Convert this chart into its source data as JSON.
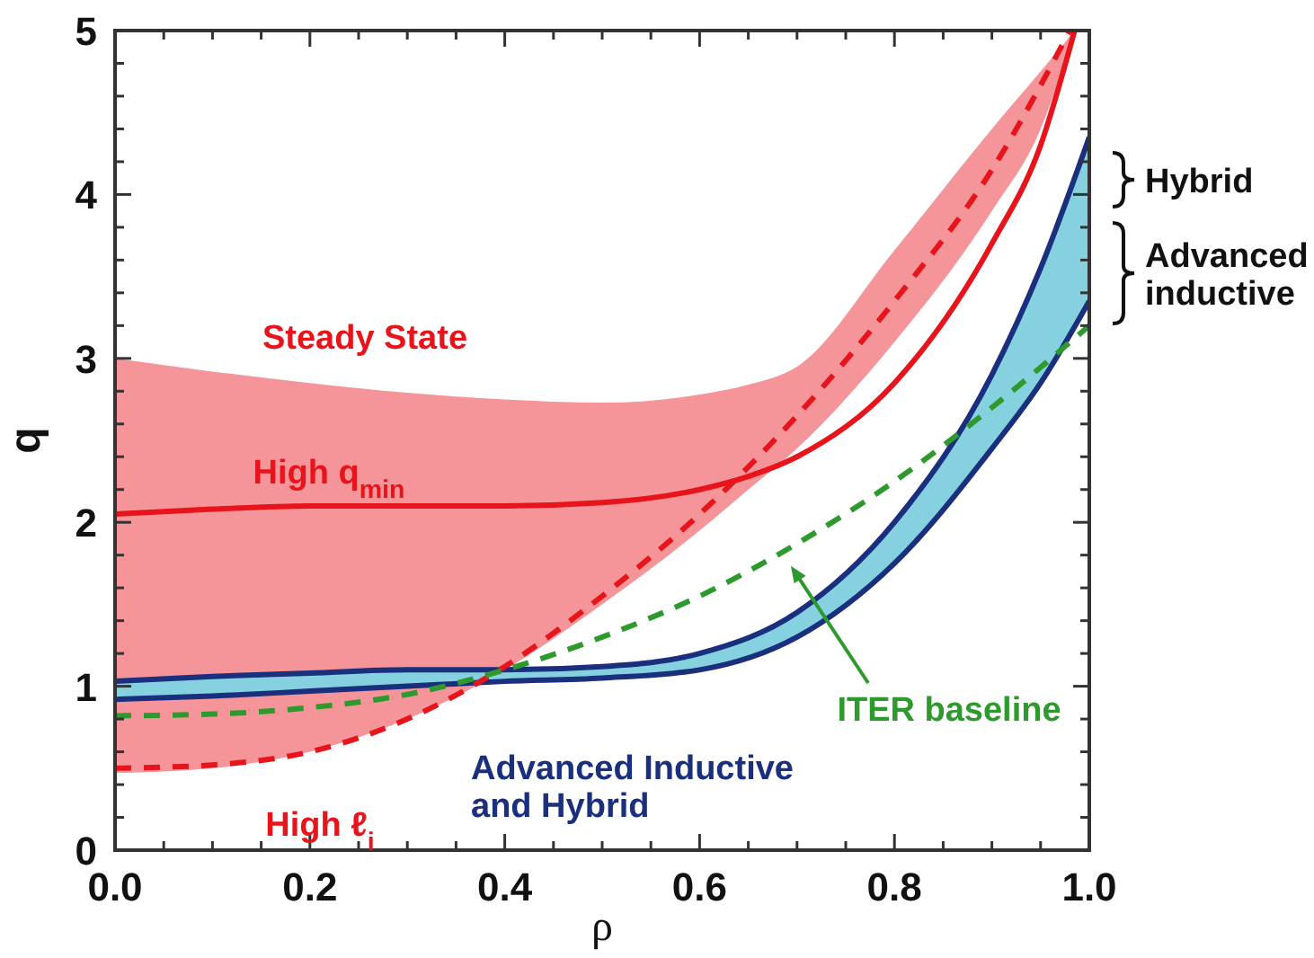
{
  "chart_data": {
    "type": "line",
    "xlabel": "ρ",
    "ylabel": "q",
    "xlim": [
      0,
      1
    ],
    "ylim": [
      0,
      5
    ],
    "xticks": [
      {
        "value": 0,
        "label": "0.0"
      },
      {
        "value": 0.05,
        "label": null
      },
      {
        "value": 0.1,
        "label": null
      },
      {
        "value": 0.15,
        "label": null
      },
      {
        "value": 0.2,
        "label": "0.2"
      },
      {
        "value": 0.25,
        "label": null
      },
      {
        "value": 0.3,
        "label": null
      },
      {
        "value": 0.35,
        "label": null
      },
      {
        "value": 0.4,
        "label": "0.4"
      },
      {
        "value": 0.45,
        "label": null
      },
      {
        "value": 0.5,
        "label": null
      },
      {
        "value": 0.55,
        "label": null
      },
      {
        "value": 0.6,
        "label": "0.6"
      },
      {
        "value": 0.65,
        "label": null
      },
      {
        "value": 0.7,
        "label": null
      },
      {
        "value": 0.75,
        "label": null
      },
      {
        "value": 0.8,
        "label": "0.8"
      },
      {
        "value": 0.85,
        "label": null
      },
      {
        "value": 0.9,
        "label": null
      },
      {
        "value": 0.95,
        "label": null
      },
      {
        "value": 1,
        "label": "1.0"
      }
    ],
    "yticks": [
      0,
      {
        "value": 0.2,
        "label": null
      },
      {
        "value": 0.4,
        "label": null
      },
      {
        "value": 0.6,
        "label": null
      },
      {
        "value": 0.8,
        "label": null
      },
      1,
      {
        "value": 1.2,
        "label": null
      },
      {
        "value": 1.4,
        "label": null
      },
      {
        "value": 1.6,
        "label": null
      },
      {
        "value": 1.8,
        "label": null
      },
      2,
      {
        "value": 2.2,
        "label": null
      },
      {
        "value": 2.4,
        "label": null
      },
      {
        "value": 2.6,
        "label": null
      },
      {
        "value": 2.8,
        "label": null
      },
      3,
      {
        "value": 3.2,
        "label": null
      },
      {
        "value": 3.4,
        "label": null
      },
      {
        "value": 3.6,
        "label": null
      },
      {
        "value": 3.8,
        "label": null
      },
      4,
      {
        "value": 4.2,
        "label": null
      },
      {
        "value": 4.4,
        "label": null
      },
      {
        "value": 4.6,
        "label": null
      },
      {
        "value": 4.8,
        "label": null
      },
      5
    ],
    "grid": false,
    "marker": "none",
    "series": [
      {
        "color": "#e8141c",
        "line_style": "solid",
        "x": [
          0,
          0.1,
          0.2,
          0.3,
          0.4,
          0.5,
          0.6,
          0.65,
          0.7,
          0.8,
          0.9,
          0.95,
          0.985
        ],
        "values": [
          2.05,
          2.08,
          2.1,
          2.1,
          2.1,
          2.12,
          2.2,
          2.28,
          2.4,
          2.85,
          3.7,
          4.3,
          5.0
        ],
        "upper": [
          3.0,
          2.92,
          2.85,
          2.79,
          2.75,
          2.73,
          2.78,
          2.84,
          2.95,
          3.66,
          4.4,
          4.75,
          5.0
        ],
        "lower": [
          0.47,
          0.5,
          0.6,
          0.8,
          1.1,
          1.5,
          1.95,
          2.2,
          2.45,
          3.1,
          3.9,
          4.4,
          5.0
        ]
      },
      {
        "color": "#1a2f7d",
        "line_style": "solid",
        "x": [
          0,
          0.1,
          0.2,
          0.3,
          0.4,
          0.5,
          0.6,
          0.7,
          0.8,
          0.9,
          0.95,
          1.0
        ],
        "values": [
          1.03,
          1.06,
          1.08,
          1.1,
          1.1,
          1.12,
          1.2,
          1.45,
          2.0,
          2.9,
          3.55,
          4.35
        ]
      },
      {
        "color": "#1a2f7d",
        "line_style": "solid",
        "x": [
          0,
          0.1,
          0.2,
          0.3,
          0.4,
          0.5,
          0.6,
          0.7,
          0.8,
          0.9,
          0.95,
          1.0
        ],
        "values": [
          0.92,
          0.94,
          0.97,
          1.0,
          1.03,
          1.05,
          1.1,
          1.3,
          1.75,
          2.45,
          2.85,
          3.35
        ],
        "lower": [
          0.92,
          0.94,
          0.97,
          1.0,
          1.03,
          1.05,
          1.1,
          1.3,
          1.75,
          2.45,
          2.85,
          3.35
        ],
        "upper": [
          1.03,
          1.06,
          1.08,
          1.1,
          1.1,
          1.12,
          1.2,
          1.45,
          2.0,
          2.9,
          3.55,
          4.35
        ]
      },
      {
        "color": "#e8141c",
        "line_style": "dashed",
        "x": [
          0,
          0.1,
          0.2,
          0.3,
          0.4,
          0.5,
          0.6,
          0.7,
          0.8,
          0.9,
          0.98
        ],
        "values": [
          0.5,
          0.52,
          0.6,
          0.8,
          1.12,
          1.55,
          2.05,
          2.65,
          3.35,
          4.15,
          5.0
        ]
      },
      {
        "color": "#2e9a2e",
        "line_style": "dashed",
        "x": [
          0,
          0.1,
          0.2,
          0.3,
          0.4,
          0.5,
          0.6,
          0.7,
          0.8,
          0.9,
          1.0
        ],
        "values": [
          0.82,
          0.83,
          0.87,
          0.95,
          1.1,
          1.3,
          1.55,
          1.87,
          2.25,
          2.7,
          3.2
        ]
      }
    ],
    "annotations": [
      "Steady State",
      "High q$_{min}$",
      "High ℓ$_{i}$",
      "Advanced Inductive\nand Hybrid",
      "ITER baseline",
      "Hybrid",
      "Advanced\ninductive"
    ]
  }
}
